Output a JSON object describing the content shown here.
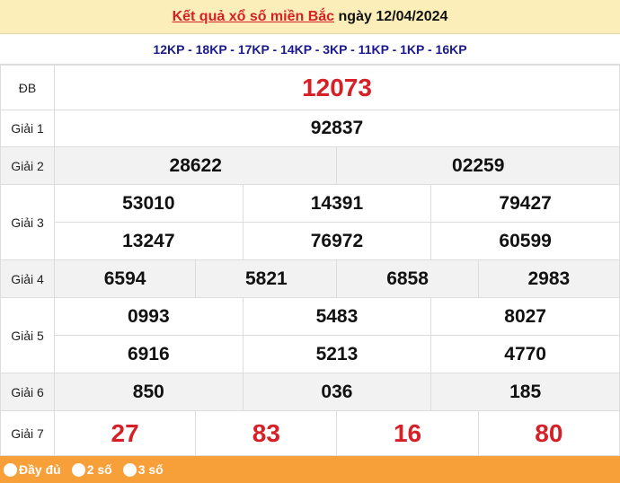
{
  "header": {
    "title_link": "Kết quả xổ số miền Bắc",
    "date_text": "ngày 12/04/2024"
  },
  "codes": "12KP - 18KP - 17KP - 14KP - 3KP - 11KP - 1KP - 16KP",
  "prizes": {
    "db": {
      "label": "ĐB",
      "values": [
        "12073"
      ]
    },
    "g1": {
      "label": "Giải 1",
      "values": [
        "92837"
      ]
    },
    "g2": {
      "label": "Giải 2",
      "values": [
        "28622",
        "02259"
      ]
    },
    "g3": {
      "label": "Giải 3",
      "values": [
        "53010",
        "14391",
        "79427",
        "13247",
        "76972",
        "60599"
      ]
    },
    "g4": {
      "label": "Giải 4",
      "values": [
        "6594",
        "5821",
        "6858",
        "2983"
      ]
    },
    "g5": {
      "label": "Giải 5",
      "values": [
        "0993",
        "5483",
        "8027",
        "6916",
        "5213",
        "4770"
      ]
    },
    "g6": {
      "label": "Giải 6",
      "values": [
        "850",
        "036",
        "185"
      ]
    },
    "g7": {
      "label": "Giải 7",
      "values": [
        "27",
        "83",
        "16",
        "80"
      ]
    }
  },
  "footer": {
    "options": [
      "Đầy đủ",
      "2 số",
      "3 số"
    ]
  },
  "colors": {
    "accent_red": "#d62027",
    "header_bg": "#fbeeb8",
    "footer_bg": "#f7a03a",
    "codes_blue": "#1a1a8c"
  }
}
